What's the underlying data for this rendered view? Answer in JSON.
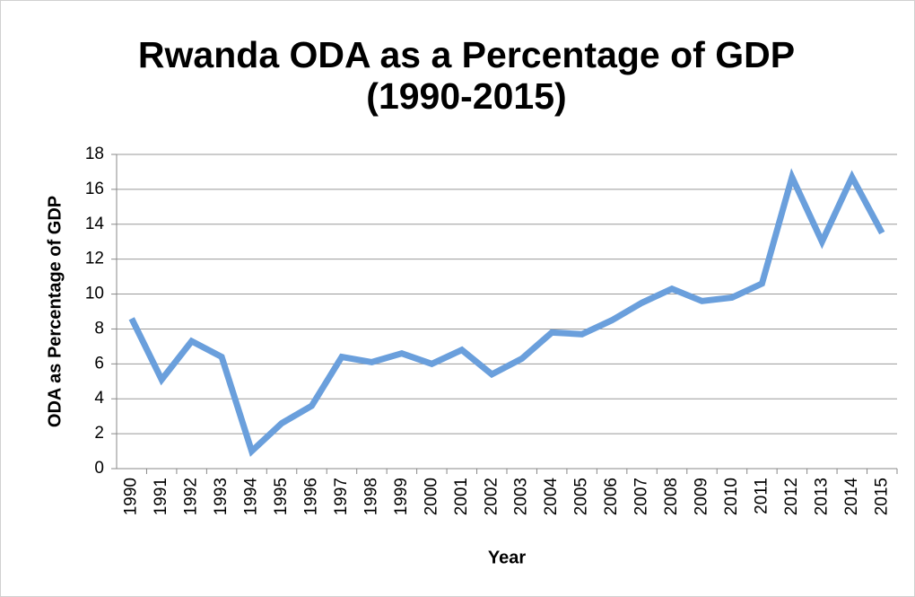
{
  "chart_data": {
    "type": "line",
    "title": [
      "Rwanda ODA as a Percentage of GDP",
      "(1990-2015)"
    ],
    "x_label": "Year",
    "y_label": "ODA as Percentage of GDP",
    "categories": [
      "1990",
      "1991",
      "1992",
      "1993",
      "1994",
      "1995",
      "1996",
      "1997",
      "1998",
      "1999",
      "2000",
      "2001",
      "2002",
      "2003",
      "2004",
      "2005",
      "2006",
      "2007",
      "2008",
      "2009",
      "2010",
      "2011",
      "2012",
      "2013",
      "2014",
      "2015"
    ],
    "series": [
      {
        "color": "#6a9fdc",
        "values": [
          8.6,
          5.1,
          7.3,
          6.4,
          1.0,
          2.6,
          3.6,
          6.4,
          6.1,
          6.6,
          6.0,
          6.8,
          5.4,
          6.3,
          7.8,
          7.7,
          8.5,
          9.5,
          10.3,
          9.6,
          9.8,
          10.6,
          16.7,
          13.0,
          16.7,
          13.5
        ]
      }
    ],
    "ylim": [
      0,
      18
    ],
    "yticks": [
      0,
      2,
      4,
      6,
      8,
      10,
      12,
      14,
      16,
      18
    ],
    "grid": true
  }
}
